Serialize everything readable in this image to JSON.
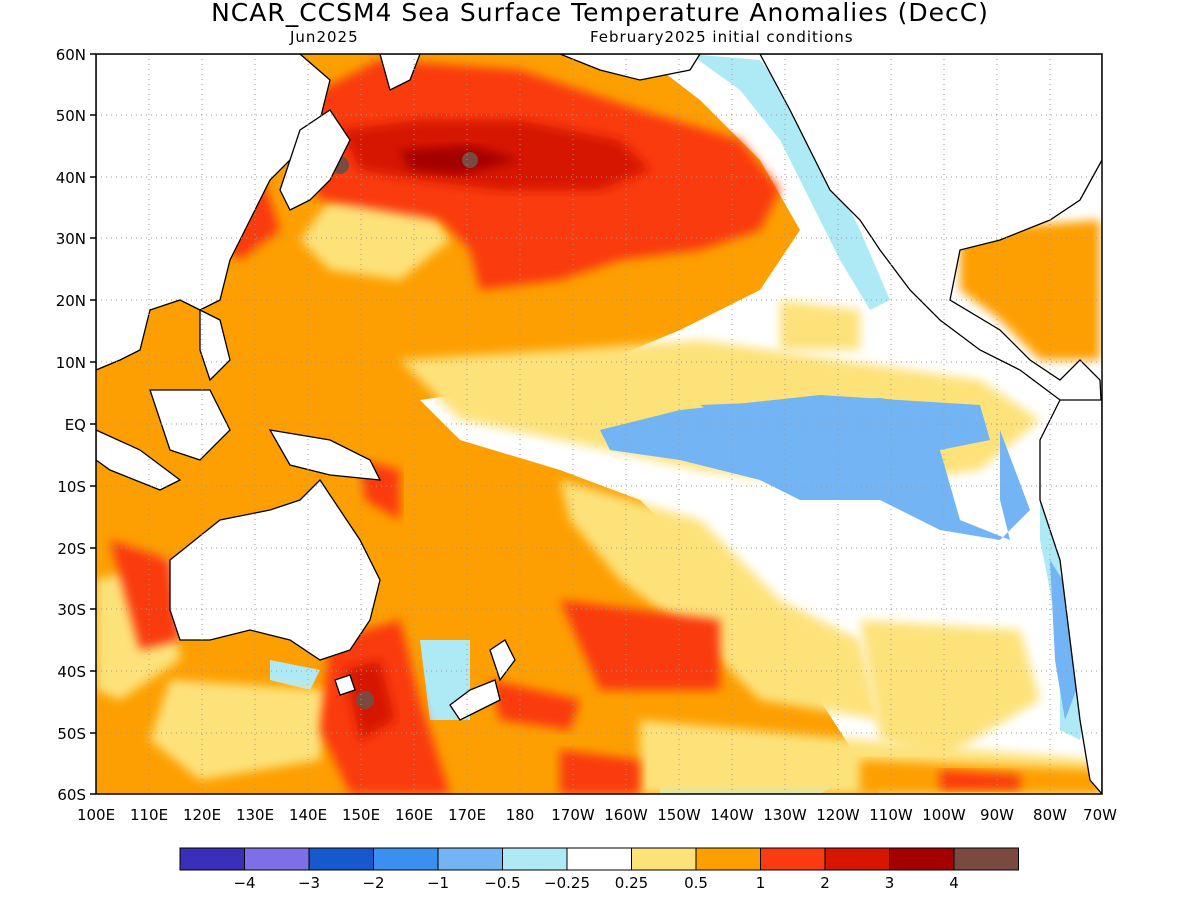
{
  "title": "NCAR_CCSM4 Sea Surface Temperature Anomalies (DecC)",
  "subtitle_left": "Jun2025",
  "subtitle_right": "February2025 initial conditions",
  "lat_labels": [
    "60N",
    "50N",
    "40N",
    "30N",
    "20N",
    "10N",
    "EQ",
    "10S",
    "20S",
    "30S",
    "40S",
    "50S",
    "60S"
  ],
  "lon_labels": [
    "100E",
    "110E",
    "120E",
    "130E",
    "140E",
    "150E",
    "160E",
    "170E",
    "180",
    "170W",
    "160W",
    "150W",
    "140W",
    "130W",
    "120W",
    "110W",
    "100W",
    "90W",
    "80W",
    "70W"
  ],
  "colorbar": {
    "colors": [
      "#3a2fb8",
      "#7e6ee8",
      "#1659cc",
      "#3a8ff0",
      "#73b4f5",
      "#aeeaf6",
      "#ffffff",
      "#fde27a",
      "#fd9f00",
      "#fa3a10",
      "#d71600",
      "#a40000",
      "#7a4a40"
    ],
    "labels": [
      "-4",
      "-3",
      "-2",
      "-1",
      "-0.5",
      "-0.25",
      "0.25",
      "0.5",
      "1",
      "2",
      "3",
      "4"
    ]
  }
}
